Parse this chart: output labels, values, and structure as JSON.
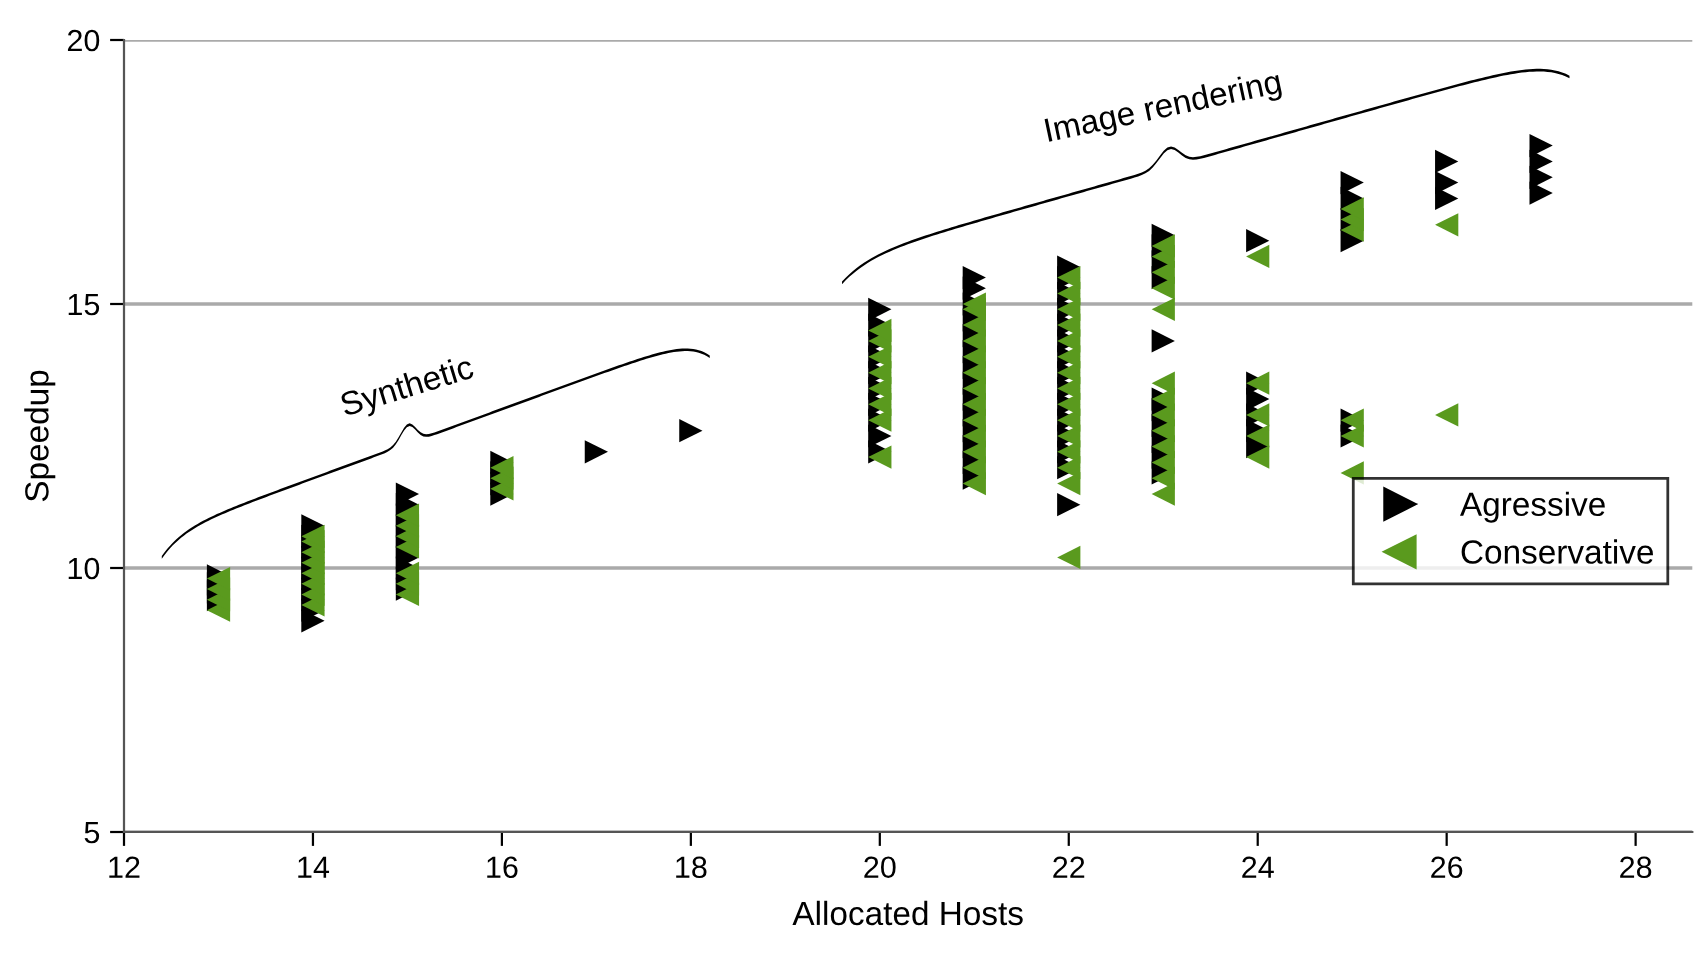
{
  "chart_data": {
    "type": "scatter",
    "xlabel": "Allocated Hosts",
    "ylabel": "Speedup",
    "xlim": [
      12,
      28.6
    ],
    "xticks": [
      12,
      14,
      16,
      18,
      20,
      22,
      24,
      26,
      28
    ],
    "ylim": [
      5,
      20
    ],
    "yticks": [
      5,
      10,
      15,
      20
    ],
    "grid": "y",
    "legend": "right",
    "annotations": [
      "Synthetic",
      "Image rendering"
    ],
    "series": [
      {
        "name": "Agressive",
        "color": "#000000",
        "marker": "triangle_right",
        "x": [
          13,
          13,
          13,
          13,
          14,
          14,
          14,
          14,
          14,
          14,
          14,
          14,
          14,
          14,
          15,
          15,
          15,
          15,
          15,
          15,
          15,
          15,
          15,
          15,
          16,
          16,
          16,
          16,
          17,
          18,
          20,
          20,
          20,
          20,
          20,
          20,
          20,
          20,
          20,
          20,
          21,
          21,
          21,
          21,
          21,
          21,
          21,
          21,
          21,
          21,
          21,
          21,
          21,
          21,
          22,
          22,
          22,
          22,
          22,
          22,
          22,
          22,
          22,
          22,
          22,
          22,
          22,
          22,
          22,
          23,
          23,
          23,
          23,
          23,
          23,
          23,
          23,
          23,
          23,
          23,
          24,
          24,
          24,
          24,
          24,
          24,
          25,
          25,
          25,
          25,
          25,
          25,
          26,
          26,
          26,
          27,
          27,
          27,
          27
        ],
        "values": [
          9.4,
          9.55,
          9.7,
          9.85,
          9.0,
          9.2,
          9.4,
          9.6,
          9.8,
          10.0,
          10.2,
          10.4,
          10.6,
          10.8,
          9.6,
          9.8,
          10.0,
          10.2,
          10.4,
          10.6,
          10.8,
          11.0,
          11.2,
          11.4,
          11.4,
          11.6,
          11.8,
          12.0,
          12.2,
          12.6,
          12.2,
          12.5,
          12.8,
          13.1,
          13.4,
          13.7,
          14.0,
          14.3,
          14.6,
          14.9,
          11.7,
          12.0,
          12.3,
          12.6,
          12.9,
          13.2,
          13.5,
          13.8,
          14.1,
          14.4,
          14.7,
          15.0,
          15.3,
          15.5,
          11.2,
          11.9,
          12.2,
          12.5,
          12.8,
          13.1,
          13.4,
          13.7,
          14.0,
          14.3,
          14.6,
          14.9,
          15.2,
          15.5,
          15.7,
          11.8,
          12.1,
          12.4,
          12.7,
          13.0,
          13.2,
          14.3,
          15.5,
          15.8,
          16.1,
          16.3,
          12.3,
          12.6,
          12.9,
          13.2,
          13.5,
          16.2,
          12.5,
          12.8,
          16.2,
          16.6,
          17.0,
          17.3,
          17.0,
          17.3,
          17.7,
          17.1,
          17.4,
          17.7,
          18.0
        ]
      },
      {
        "name": "Conservative",
        "color": "#5a9a1e",
        "marker": "triangle_left",
        "x": [
          13,
          13,
          13,
          13,
          14,
          14,
          14,
          14,
          14,
          14,
          14,
          14,
          15,
          15,
          15,
          15,
          15,
          15,
          15,
          16,
          16,
          16,
          20,
          20,
          20,
          20,
          20,
          20,
          20,
          20,
          21,
          21,
          21,
          21,
          21,
          21,
          21,
          21,
          21,
          21,
          21,
          21,
          21,
          22,
          22,
          22,
          22,
          22,
          22,
          22,
          22,
          22,
          22,
          22,
          22,
          22,
          22,
          22,
          23,
          23,
          23,
          23,
          23,
          23,
          23,
          23,
          23,
          23,
          23,
          23,
          23,
          24,
          24,
          24,
          24,
          24,
          25,
          25,
          25,
          25,
          25,
          25,
          26,
          26
        ],
        "values": [
          9.2,
          9.4,
          9.6,
          9.8,
          9.3,
          9.5,
          9.7,
          9.9,
          10.1,
          10.3,
          10.5,
          10.6,
          9.5,
          9.7,
          9.9,
          10.4,
          10.6,
          10.8,
          11.0,
          11.5,
          11.7,
          11.9,
          12.1,
          12.8,
          13.1,
          13.4,
          13.7,
          14.0,
          14.3,
          14.5,
          11.6,
          11.9,
          12.2,
          12.5,
          12.8,
          13.1,
          13.4,
          13.7,
          14.0,
          14.3,
          14.6,
          14.9,
          15.0,
          10.2,
          11.6,
          11.9,
          12.2,
          12.5,
          12.8,
          13.1,
          13.4,
          13.7,
          14.0,
          14.3,
          14.6,
          14.9,
          15.2,
          15.5,
          11.4,
          11.7,
          12.0,
          12.3,
          12.6,
          12.9,
          13.2,
          13.5,
          14.9,
          15.3,
          15.6,
          15.9,
          16.1,
          12.1,
          12.5,
          12.9,
          13.5,
          15.9,
          11.8,
          12.5,
          12.8,
          16.4,
          16.6,
          16.8,
          12.9,
          16.5
        ]
      }
    ]
  }
}
